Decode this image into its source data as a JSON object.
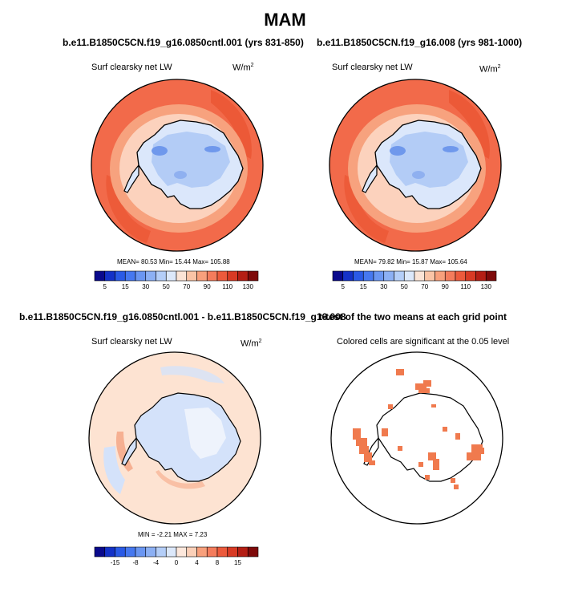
{
  "title": "MAM",
  "panels": {
    "p1": {
      "title": "b.e11.B1850C5CN.f19_g16.0850cntl.001 (yrs 831-850)",
      "variable": "Surf clearsky net LW",
      "units": "W/m",
      "units_sup": "2",
      "stats": "MEAN= 80.53  Min= 15.44  Max= 105.88"
    },
    "p2": {
      "title": "b.e11.B1850C5CN.f19_g16.008 (yrs 981-1000)",
      "variable": "Surf clearsky net LW",
      "units": "W/m",
      "units_sup": "2",
      "stats": "MEAN= 79.82  Min= 15.87  Max= 105.64"
    },
    "p3": {
      "title": "b.e11.B1850C5CN.f19_g16.0850cntl.001 - b.e11.B1850C5CN.f19_g16.008",
      "variable": "Surf clearsky net LW",
      "units": "W/m",
      "units_sup": "2",
      "stats": "MIN =  -2.21 MAX =  7.23"
    },
    "p4": {
      "title": "t-test of the two means at each grid point",
      "variable": "Colored cells are significant at the 0.05 level"
    }
  },
  "colorbars": {
    "absolute": {
      "colors": [
        "#0a0a8c",
        "#1432c8",
        "#2a5ae6",
        "#4678f0",
        "#6a96f2",
        "#8cb0f4",
        "#b4cef8",
        "#dce8fa",
        "#fbe4d6",
        "#fac4a6",
        "#f8a07c",
        "#f47c5c",
        "#ec5a3c",
        "#d83a24",
        "#b41e14",
        "#7e0a0a"
      ],
      "labels": [
        "5",
        "15",
        "30",
        "50",
        "70",
        "90",
        "110",
        "130"
      ]
    },
    "difference": {
      "colors": [
        "#0a0a8c",
        "#1432c8",
        "#2a5ae6",
        "#4678f0",
        "#6a96f2",
        "#8cb0f4",
        "#b4cef8",
        "#dce8fa",
        "#fde8dc",
        "#fbd0b8",
        "#f8a07c",
        "#f47c5c",
        "#ec5a3c",
        "#d83a24",
        "#b41e14",
        "#7e0a0a"
      ],
      "labels": [
        "-15",
        "-8",
        "-4",
        "0",
        "4",
        "8",
        "15"
      ]
    }
  },
  "colors": {
    "ocean_abs": "#f26a4a",
    "ocean_abs_dark": "#e9522f",
    "ring_abs": "#f7a27e",
    "ring_abs_light": "#fcd2bd",
    "ice_light": "#dbe7fb",
    "ice_mid": "#b3ccf6",
    "ice_dark": "#6f98ec",
    "diff_background": "#fde3d2",
    "diff_blue": "#d4e2fa",
    "diff_red": "#f6b092",
    "signif": "#f07a4e"
  }
}
